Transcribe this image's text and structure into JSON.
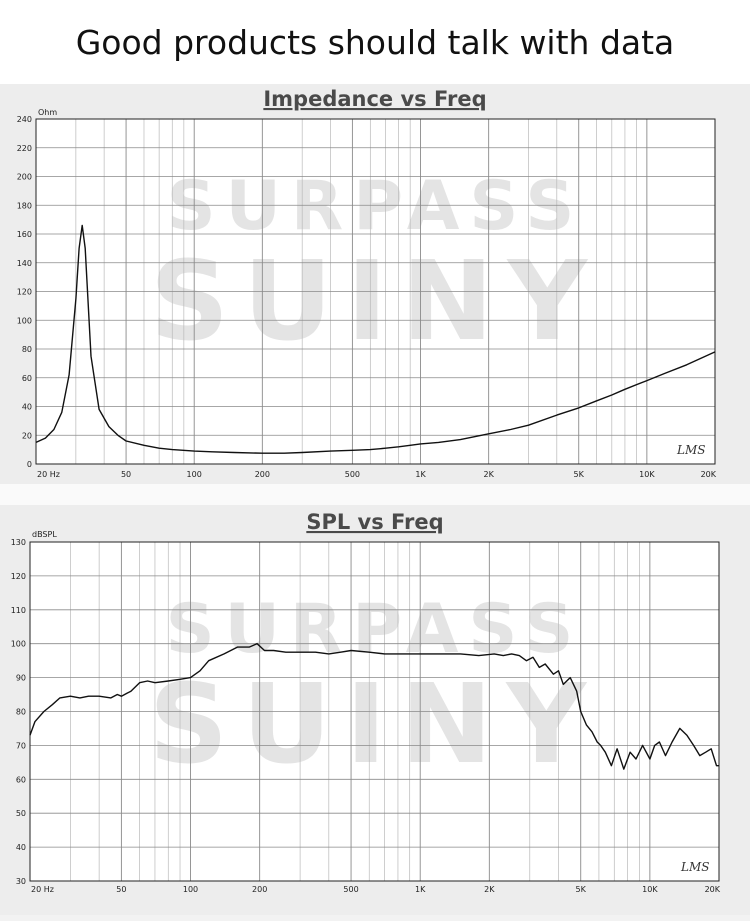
{
  "headline": "Good products should talk with data",
  "watermark": {
    "line1": "SURPASS",
    "line2": "SUINY"
  },
  "chart_data": [
    {
      "type": "line",
      "title": "Impedance vs Freq",
      "ylabel": "Ohm",
      "xscale": "log",
      "xlim": [
        20,
        20000
      ],
      "ylim": [
        0,
        240
      ],
      "yticks": [
        0,
        20,
        40,
        60,
        80,
        100,
        120,
        140,
        160,
        180,
        200,
        220,
        240
      ],
      "xtick_labels": [
        {
          "x": 20,
          "label": "20 Hz"
        },
        {
          "x": 50,
          "label": "50"
        },
        {
          "x": 100,
          "label": "100"
        },
        {
          "x": 200,
          "label": "200"
        },
        {
          "x": 500,
          "label": "500"
        },
        {
          "x": 1000,
          "label": "1K"
        },
        {
          "x": 2000,
          "label": "2K"
        },
        {
          "x": 5000,
          "label": "5K"
        },
        {
          "x": 10000,
          "label": "10K"
        },
        {
          "x": 20000,
          "label": "20K"
        }
      ],
      "grid": true,
      "logo_text": "LMS",
      "line_color": "#111111",
      "series": [
        {
          "x": [
            20,
            22,
            24,
            26,
            28,
            30,
            31,
            32,
            33,
            35,
            38,
            42,
            46,
            50,
            60,
            70,
            80,
            100,
            120,
            150,
            200,
            250,
            300,
            400,
            500,
            600,
            700,
            800,
            900,
            1000,
            1200,
            1500,
            2000,
            2500,
            3000,
            4000,
            5000,
            6000,
            7000,
            8000,
            10000,
            12000,
            15000,
            20000
          ],
          "y": [
            15,
            18,
            24,
            36,
            62,
            115,
            150,
            166,
            150,
            75,
            38,
            26,
            20,
            16,
            13,
            11,
            10,
            9,
            8.5,
            8,
            7.5,
            7.5,
            8,
            9,
            9.5,
            10,
            11,
            12,
            13,
            14,
            15,
            17,
            21,
            24,
            27,
            34,
            39,
            44,
            48,
            52,
            58,
            63,
            69,
            78
          ]
        }
      ]
    },
    {
      "type": "line",
      "title": "SPL vs Freq",
      "ylabel": "dBSPL",
      "xscale": "log",
      "xlim": [
        20,
        20000
      ],
      "ylim": [
        30,
        130
      ],
      "yticks": [
        30,
        40,
        50,
        60,
        70,
        80,
        90,
        100,
        110,
        120,
        130
      ],
      "xtick_labels": [
        {
          "x": 20,
          "label": "20 Hz"
        },
        {
          "x": 50,
          "label": "50"
        },
        {
          "x": 100,
          "label": "100"
        },
        {
          "x": 200,
          "label": "200"
        },
        {
          "x": 500,
          "label": "500"
        },
        {
          "x": 1000,
          "label": "1K"
        },
        {
          "x": 2000,
          "label": "2K"
        },
        {
          "x": 5000,
          "label": "5K"
        },
        {
          "x": 10000,
          "label": "10K"
        },
        {
          "x": 20000,
          "label": "20K"
        }
      ],
      "grid": true,
      "logo_text": "LMS",
      "line_color": "#111111",
      "series": [
        {
          "x": [
            20,
            21,
            23,
            25,
            27,
            30,
            33,
            36,
            40,
            45,
            48,
            50,
            55,
            60,
            65,
            70,
            80,
            90,
            100,
            110,
            120,
            140,
            160,
            180,
            195,
            210,
            230,
            260,
            300,
            350,
            400,
            450,
            500,
            600,
            700,
            800,
            1000,
            1200,
            1500,
            1800,
            2100,
            2300,
            2500,
            2700,
            2900,
            3100,
            3300,
            3500,
            3800,
            4000,
            4200,
            4500,
            4800,
            5000,
            5300,
            5600,
            5900,
            6100,
            6400,
            6800,
            7200,
            7700,
            8200,
            8700,
            9300,
            10000,
            10500,
            11000,
            11700,
            12500,
            13500,
            14500,
            15500,
            16500,
            17500,
            18500,
            19500,
            20000
          ],
          "y": [
            73,
            77,
            80,
            82,
            84,
            84.5,
            84,
            84.5,
            84.5,
            84,
            85,
            84.5,
            86,
            88.5,
            89,
            88.5,
            89,
            89.5,
            90,
            92,
            95,
            97,
            99,
            99,
            100,
            98,
            98,
            97.5,
            97.5,
            97.5,
            97,
            97.5,
            98,
            97.5,
            97,
            97,
            97,
            97,
            97,
            96.5,
            97,
            96.5,
            97,
            96.5,
            95,
            96,
            93,
            94,
            91,
            92,
            88,
            90,
            86,
            80,
            76,
            74,
            71,
            70,
            68,
            64,
            69,
            63,
            68,
            66,
            70,
            66,
            70,
            71,
            67,
            71,
            75,
            73,
            70,
            67,
            68,
            69,
            64,
            64
          ]
        }
      ]
    }
  ]
}
